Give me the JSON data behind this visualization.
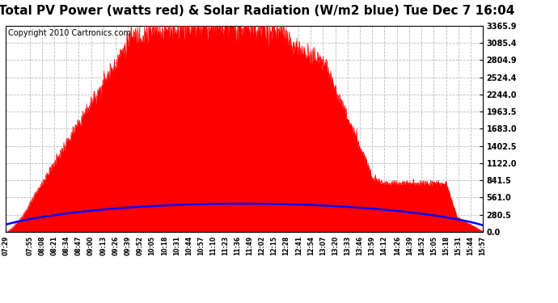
{
  "title": "Total PV Power (watts red) & Solar Radiation (W/m2 blue) Tue Dec 7 16:04",
  "copyright": "Copyright 2010 Cartronics.com",
  "ymax": 3365.9,
  "yticks": [
    0.0,
    280.5,
    561.0,
    841.5,
    1122.0,
    1402.5,
    1683.0,
    1963.5,
    2244.0,
    2524.4,
    2804.9,
    3085.4,
    3365.9
  ],
  "bg_color": "#ffffff",
  "grid_color": "#bbbbbb",
  "pv_color": "#ff0000",
  "solar_color": "#0000ff",
  "title_fontsize": 11,
  "copyright_fontsize": 7,
  "xtick_labels": [
    "07:29",
    "07:55",
    "08:08",
    "08:21",
    "08:34",
    "08:47",
    "09:00",
    "09:13",
    "09:26",
    "09:39",
    "09:52",
    "10:05",
    "10:18",
    "10:31",
    "10:44",
    "10:57",
    "11:10",
    "11:23",
    "11:36",
    "11:49",
    "12:02",
    "12:15",
    "12:28",
    "12:41",
    "12:54",
    "13:07",
    "13:20",
    "13:33",
    "13:46",
    "13:59",
    "14:12",
    "14:26",
    "14:39",
    "14:52",
    "15:05",
    "15:18",
    "15:31",
    "15:44",
    "15:57"
  ]
}
